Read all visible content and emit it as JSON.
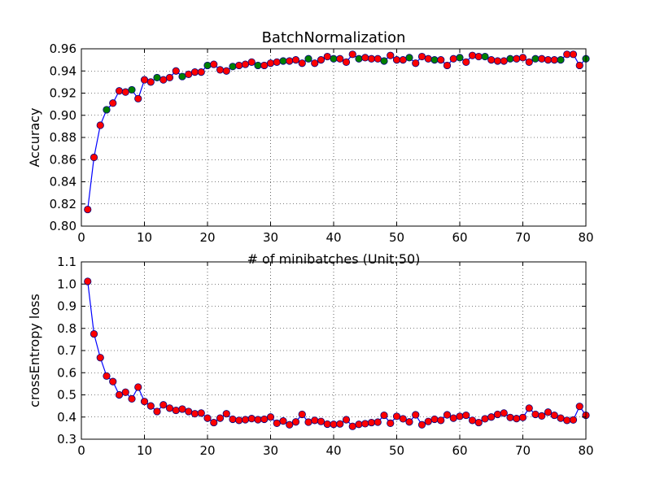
{
  "chart_data": [
    {
      "type": "line",
      "title": "BatchNormalization",
      "xlabel": "# of minibatches (Unit:50)",
      "ylabel": "Accuracy",
      "xlim": [
        0,
        80
      ],
      "ylim": [
        0.8,
        0.96
      ],
      "xticks": [
        0,
        10,
        20,
        30,
        40,
        50,
        60,
        70,
        80
      ],
      "xtick_labels": [
        "0",
        "10",
        "20",
        "30",
        "40",
        "50",
        "60",
        "70",
        "80"
      ],
      "yticks": [
        0.8,
        0.82,
        0.84,
        0.86,
        0.88,
        0.9,
        0.92,
        0.94,
        0.96
      ],
      "ytick_labels": [
        "0.80",
        "0.82",
        "0.84",
        "0.86",
        "0.88",
        "0.90",
        "0.92",
        "0.94",
        "0.96"
      ],
      "grid": true,
      "colors": {
        "line": "#0000ff",
        "marker_default": "#ff0000",
        "marker_highlight": "#008000",
        "marker_edge": "#000080"
      },
      "x": [
        1,
        2,
        3,
        4,
        5,
        6,
        7,
        8,
        9,
        10,
        11,
        12,
        13,
        14,
        15,
        16,
        17,
        18,
        19,
        20,
        21,
        22,
        23,
        24,
        25,
        26,
        27,
        28,
        29,
        30,
        31,
        32,
        33,
        34,
        35,
        36,
        37,
        38,
        39,
        40,
        41,
        42,
        43,
        44,
        45,
        46,
        47,
        48,
        49,
        50,
        51,
        52,
        53,
        54,
        55,
        56,
        57,
        58,
        59,
        60,
        61,
        62,
        63,
        64,
        65,
        66,
        67,
        68,
        69,
        70,
        71,
        72,
        73,
        74,
        75,
        76,
        77,
        78,
        79,
        80
      ],
      "y": [
        0.815,
        0.862,
        0.891,
        0.905,
        0.911,
        0.922,
        0.921,
        0.923,
        0.915,
        0.932,
        0.93,
        0.934,
        0.932,
        0.934,
        0.94,
        0.935,
        0.937,
        0.939,
        0.939,
        0.945,
        0.946,
        0.941,
        0.94,
        0.944,
        0.945,
        0.946,
        0.948,
        0.945,
        0.945,
        0.947,
        0.948,
        0.949,
        0.949,
        0.95,
        0.947,
        0.951,
        0.947,
        0.95,
        0.953,
        0.951,
        0.951,
        0.948,
        0.955,
        0.951,
        0.952,
        0.951,
        0.951,
        0.949,
        0.954,
        0.95,
        0.95,
        0.952,
        0.947,
        0.953,
        0.951,
        0.95,
        0.95,
        0.945,
        0.951,
        0.952,
        0.948,
        0.954,
        0.953,
        0.953,
        0.95,
        0.949,
        0.949,
        0.951,
        0.951,
        0.952,
        0.948,
        0.951,
        0.951,
        0.95,
        0.95,
        0.95,
        0.955,
        0.955,
        0.945,
        0.951
      ],
      "highlight_x": [
        4,
        8,
        12,
        16,
        20,
        24,
        28,
        32,
        36,
        40,
        44,
        48,
        52,
        56,
        60,
        64,
        68,
        72,
        76,
        80
      ]
    },
    {
      "type": "line",
      "title": "",
      "xlabel": "",
      "ylabel": "crossEntropy loss",
      "xlim": [
        0,
        80
      ],
      "ylim": [
        0.3,
        1.1
      ],
      "xticks": [
        0,
        10,
        20,
        30,
        40,
        50,
        60,
        70,
        80
      ],
      "xtick_labels": [
        "0",
        "10",
        "20",
        "30",
        "40",
        "50",
        "60",
        "70",
        "80"
      ],
      "yticks": [
        0.3,
        0.4,
        0.5,
        0.6,
        0.7,
        0.8,
        0.9,
        1.0,
        1.1
      ],
      "ytick_labels": [
        "0.3",
        "0.4",
        "0.5",
        "0.6",
        "0.7",
        "0.8",
        "0.9",
        "1.0",
        "1.1"
      ],
      "grid": true,
      "colors": {
        "line": "#0000ff",
        "marker_default": "#ff0000",
        "marker_edge": "#000080"
      },
      "x": [
        1,
        2,
        3,
        4,
        5,
        6,
        7,
        8,
        9,
        10,
        11,
        12,
        13,
        14,
        15,
        16,
        17,
        18,
        19,
        20,
        21,
        22,
        23,
        24,
        25,
        26,
        27,
        28,
        29,
        30,
        31,
        32,
        33,
        34,
        35,
        36,
        37,
        38,
        39,
        40,
        41,
        42,
        43,
        44,
        45,
        46,
        47,
        48,
        49,
        50,
        51,
        52,
        53,
        54,
        55,
        56,
        57,
        58,
        59,
        60,
        61,
        62,
        63,
        64,
        65,
        66,
        67,
        68,
        69,
        70,
        71,
        72,
        73,
        74,
        75,
        76,
        77,
        78,
        79,
        80
      ],
      "y": [
        1.012,
        0.775,
        0.668,
        0.585,
        0.56,
        0.5,
        0.512,
        0.482,
        0.535,
        0.47,
        0.45,
        0.425,
        0.455,
        0.44,
        0.43,
        0.436,
        0.425,
        0.415,
        0.418,
        0.395,
        0.375,
        0.395,
        0.415,
        0.39,
        0.385,
        0.388,
        0.393,
        0.388,
        0.39,
        0.4,
        0.372,
        0.382,
        0.365,
        0.378,
        0.412,
        0.377,
        0.385,
        0.38,
        0.368,
        0.367,
        0.369,
        0.388,
        0.358,
        0.367,
        0.37,
        0.375,
        0.377,
        0.408,
        0.372,
        0.403,
        0.392,
        0.378,
        0.41,
        0.365,
        0.38,
        0.39,
        0.385,
        0.41,
        0.395,
        0.403,
        0.408,
        0.385,
        0.375,
        0.392,
        0.4,
        0.412,
        0.418,
        0.398,
        0.393,
        0.398,
        0.44,
        0.412,
        0.405,
        0.422,
        0.408,
        0.395,
        0.385,
        0.387,
        0.448,
        0.408
      ],
      "highlight_x": []
    }
  ]
}
